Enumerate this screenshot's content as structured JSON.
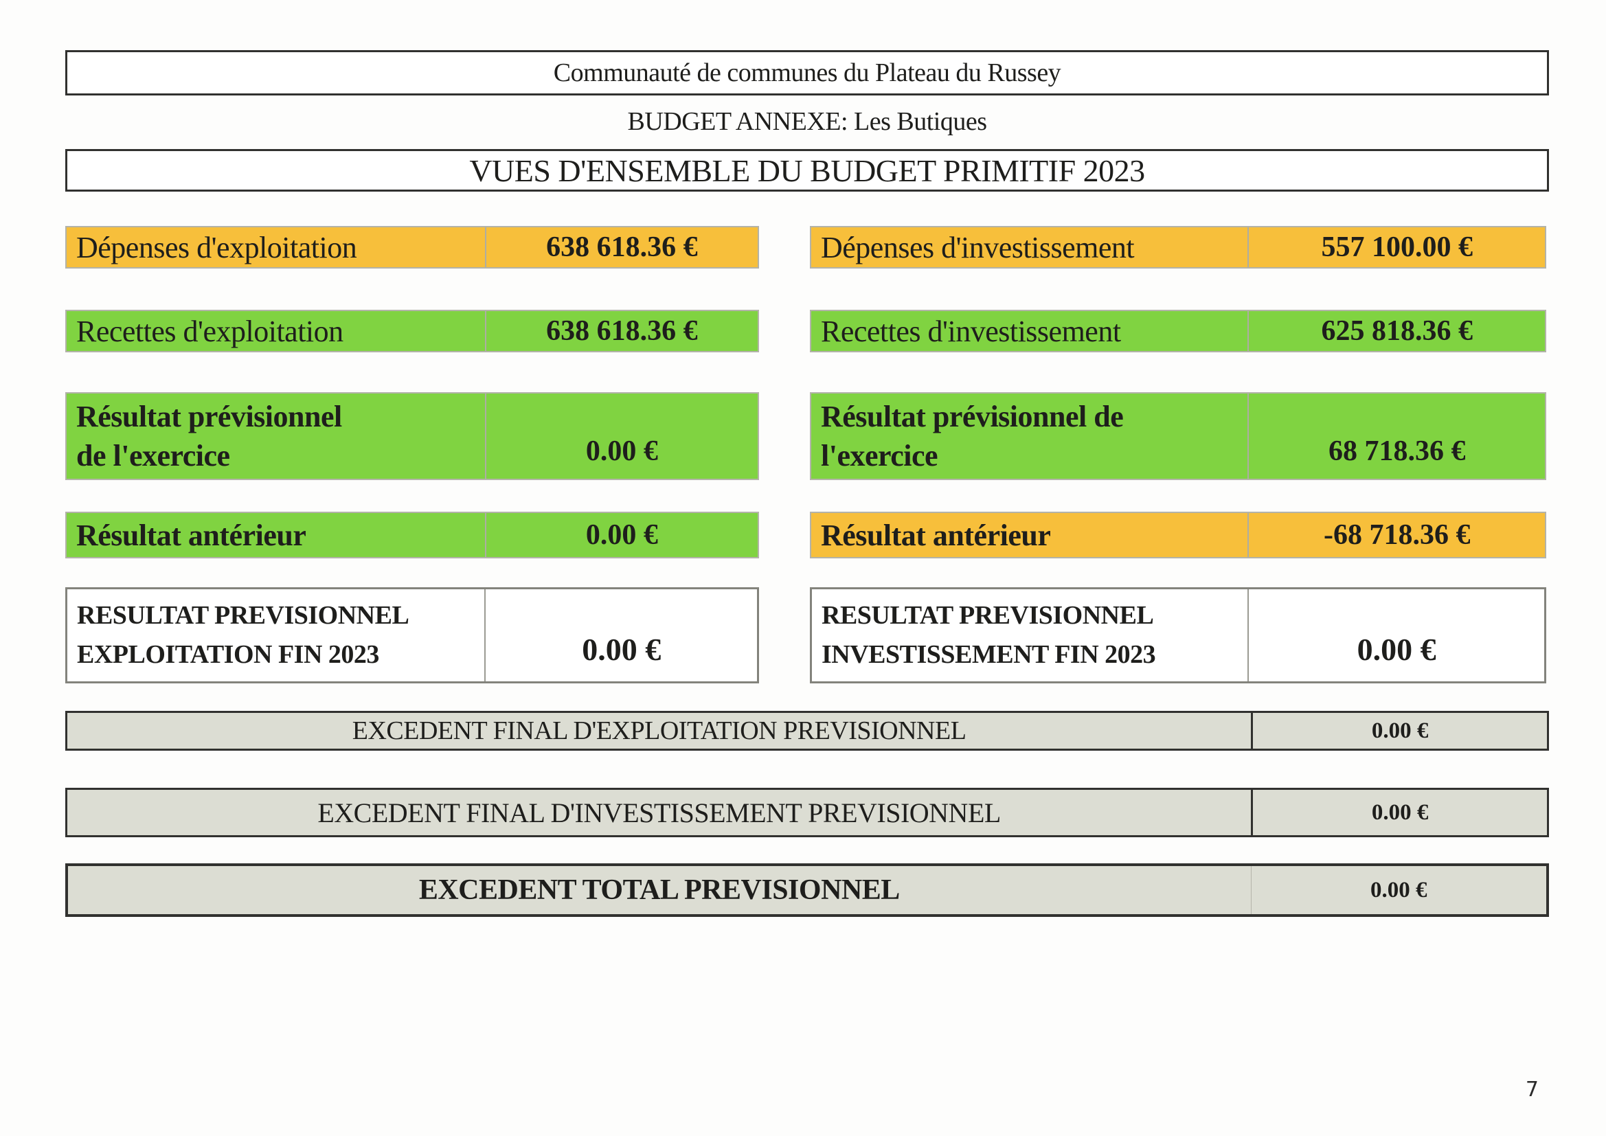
{
  "header": {
    "org_title": "Communauté de communes du Plateau du Russey",
    "budget_annexe": "BUDGET ANNEXE: Les Butiques",
    "main_title": "VUES D'ENSEMBLE DU BUDGET PRIMITIF 2023"
  },
  "exploitation": {
    "depenses": {
      "label": "Dépenses d'exploitation",
      "value": "638 618.36 €"
    },
    "recettes": {
      "label": "Recettes d'exploitation",
      "value": "638 618.36 €"
    },
    "resultat_previsionnel": {
      "label": "Résultat prévisionnel\nde l'exercice",
      "value": "0.00 €"
    },
    "resultat_anterieur": {
      "label": "Résultat antérieur",
      "value": "0.00 €"
    },
    "resultat_fin": {
      "label": "RESULTAT PREVISIONNEL\nEXPLOITATION FIN 2023",
      "value": "0.00 €"
    }
  },
  "investissement": {
    "depenses": {
      "label": "Dépenses d'investissement",
      "value": "557 100.00 €"
    },
    "recettes": {
      "label": "Recettes d'investissement",
      "value": "625 818.36 €"
    },
    "resultat_previsionnel": {
      "label": "Résultat prévisionnel de\nl'exercice",
      "value": "68 718.36 €"
    },
    "resultat_anterieur": {
      "label": "Résultat antérieur",
      "value": "-68 718.36 €"
    },
    "resultat_fin": {
      "label": "RESULTAT PREVISIONNEL\nINVESTISSEMENT FIN 2023",
      "value": "0.00 €"
    }
  },
  "totaux": {
    "exploitation": {
      "label": "EXCEDENT FINAL D'EXPLOITATION PREVISIONNEL",
      "value": "0.00 €"
    },
    "investissement": {
      "label": "EXCEDENT FINAL D'INVESTISSEMENT PREVISIONNEL",
      "value": "0.00 €"
    },
    "total": {
      "label": "EXCEDENT TOTAL PREVISIONNEL",
      "value": "0.00 €"
    }
  },
  "footer": {
    "page_number": "7"
  },
  "colors": {
    "orange": "#F7BF3B",
    "green": "#80D341",
    "grey_band": "#DCDDD3",
    "border_dark": "#31312F",
    "border_light": "#ADADA3",
    "text": "#1E1E1C"
  }
}
